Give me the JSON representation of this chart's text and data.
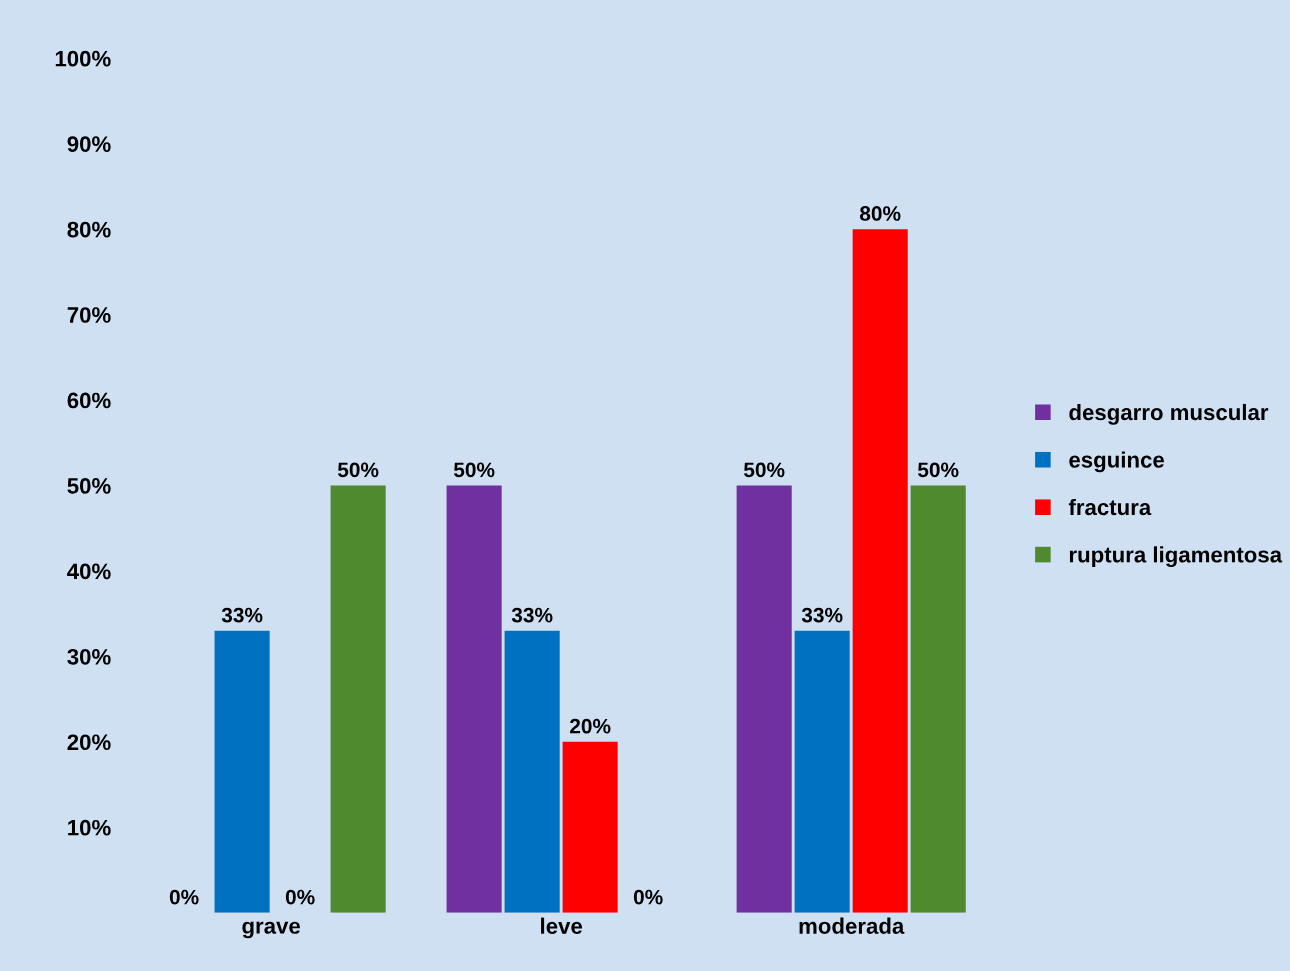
{
  "chart_data": {
    "type": "bar",
    "categories": [
      "grave",
      "leve",
      "moderada"
    ],
    "series": [
      {
        "name": "desgarro muscular",
        "color": "#7030a0",
        "values": [
          0,
          50,
          50
        ]
      },
      {
        "name": "esguince",
        "color": "#0070c0",
        "values": [
          33,
          33,
          33
        ]
      },
      {
        "name": "fractura",
        "color": "#ff0000",
        "values": [
          0,
          20,
          80
        ]
      },
      {
        "name": "ruptura ligamentosa",
        "color": "#4f8a2f",
        "values": [
          50,
          0,
          50
        ]
      }
    ],
    "ylim": [
      0,
      100
    ],
    "yticks": [
      {
        "value": 10,
        "label": "10%"
      },
      {
        "value": 20,
        "label": "20%"
      },
      {
        "value": 30,
        "label": "30%"
      },
      {
        "value": 40,
        "label": "40%"
      },
      {
        "value": 50,
        "label": "50%"
      },
      {
        "value": 60,
        "label": "60%"
      },
      {
        "value": 70,
        "label": "70%"
      },
      {
        "value": 80,
        "label": "80%"
      },
      {
        "value": 90,
        "label": "90%"
      },
      {
        "value": 100,
        "label": "100%"
      }
    ],
    "value_labels": [
      [
        "0%",
        "50%",
        "50%"
      ],
      [
        "33%",
        "33%",
        "33%"
      ],
      [
        "0%",
        "20%",
        "80%"
      ],
      [
        "50%",
        "0%",
        "50%"
      ]
    ],
    "legend": "right",
    "grid": false
  }
}
